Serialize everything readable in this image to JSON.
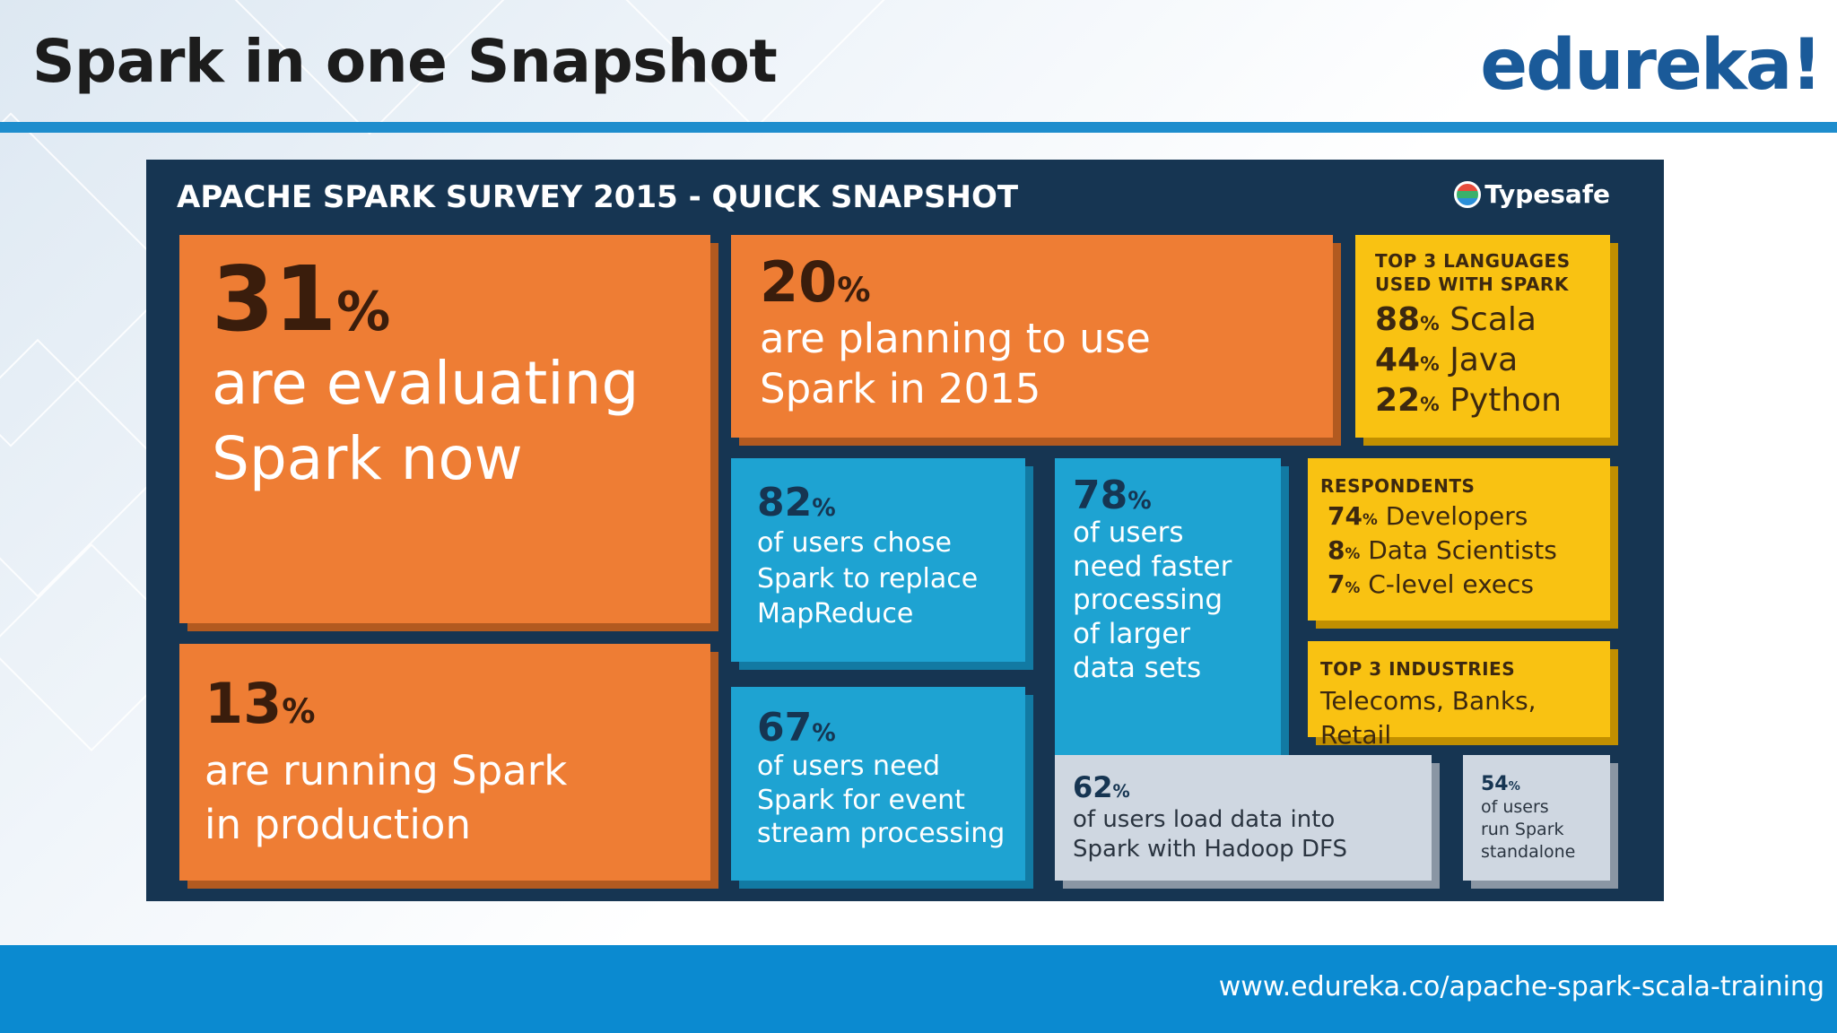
{
  "slide": {
    "title": "Spark in one Snapshot",
    "logo": "edureka!",
    "footer_url": "www.edureka.co/apache-spark-scala-training"
  },
  "survey": {
    "heading": "APACHE SPARK SURVEY 2015 - QUICK SNAPSHOT",
    "brand": "Typesafe",
    "evaluating": {
      "pct": "31",
      "sign": "%",
      "line1": "are evaluating",
      "line2": "Spark now"
    },
    "planning": {
      "pct": "20",
      "sign": "%",
      "line1": "are planning to use",
      "line2": "Spark in 2015"
    },
    "languages": {
      "caption1": "TOP 3 LANGUAGES",
      "caption2": "USED WITH SPARK",
      "items": [
        {
          "pct": "88",
          "sign": "%",
          "label": " Scala"
        },
        {
          "pct": "44",
          "sign": "%",
          "label": " Java"
        },
        {
          "pct": "22",
          "sign": "%",
          "label": " Python"
        }
      ]
    },
    "replace": {
      "pct": "82",
      "sign": "%",
      "line1": "of users chose",
      "line2": "Spark to replace",
      "line3": "MapReduce"
    },
    "faster": {
      "pct": "78",
      "sign": "%",
      "line1": "of users",
      "line2": "need faster",
      "line3": "processing",
      "line4": "of larger",
      "line5": "data sets"
    },
    "respondents": {
      "caption": "RESPONDENTS",
      "items": [
        {
          "pct": "74",
          "sign": "%",
          "label": " Developers"
        },
        {
          "pct": "8",
          "sign": "%",
          "label": " Data Scientists"
        },
        {
          "pct": "7",
          "sign": "%",
          "label": " C-level execs"
        }
      ]
    },
    "industries": {
      "caption": "TOP 3 INDUSTRIES",
      "text": "Telecoms, Banks, Retail"
    },
    "production": {
      "pct": "13",
      "sign": "%",
      "line1": "are running Spark",
      "line2": "in production"
    },
    "stream": {
      "pct": "67",
      "sign": "%",
      "line1": "of users need",
      "line2": "Spark for event",
      "line3": "stream processing"
    },
    "hadoop": {
      "pct": "62",
      "sign": "%",
      "line1": "of users load data into",
      "line2": "Spark with Hadoop DFS"
    },
    "standalone": {
      "pct": "54",
      "sign": "%",
      "line1": "of users",
      "line2": "run Spark",
      "line3": "standalone"
    }
  },
  "colors": {
    "accent_blue": "#1e8dcd",
    "panel_navy": "#163552",
    "tile_orange": "#ee7d34",
    "tile_blue": "#1ea3d2",
    "tile_yellow": "#f9c212",
    "tile_grey": "#cfd7e1"
  }
}
